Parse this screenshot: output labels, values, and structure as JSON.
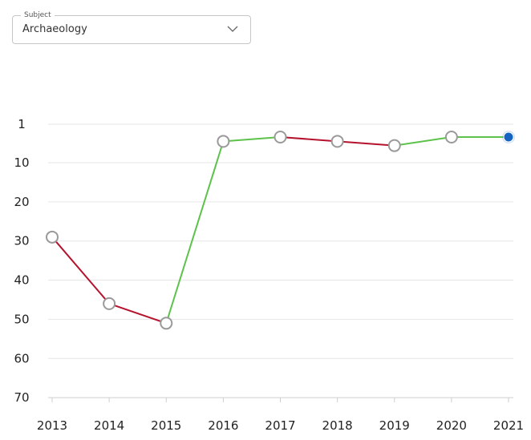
{
  "subject": {
    "label": "Subject",
    "value": "Archaeology"
  },
  "chart_data": {
    "type": "line",
    "x": [
      2013,
      2014,
      2015,
      2016,
      2017,
      2018,
      2019,
      2020,
      2021
    ],
    "values": [
      29,
      46,
      51,
      5,
      4,
      5,
      6,
      4,
      4
    ],
    "y_ticks": [
      1,
      10,
      20,
      30,
      40,
      50,
      60,
      70
    ],
    "ylim": [
      70,
      1
    ],
    "y_inverted": true,
    "grid": true,
    "colors": {
      "improve": "#5cc24a",
      "decline": "#b5122d",
      "marker_stroke": "#9a9a9a",
      "marker_fill": "#ffffff",
      "current_marker": "#1565c0",
      "grid": "#e6e6e6"
    }
  }
}
